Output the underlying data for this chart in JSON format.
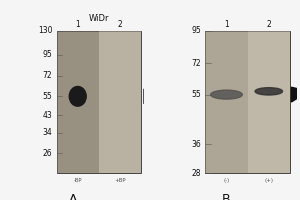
{
  "background_color": "#f5f5f5",
  "panel_A": {
    "header": "WiDr",
    "lane_labels": [
      "1",
      "2"
    ],
    "mw_markers": [
      130,
      95,
      72,
      55,
      43,
      34,
      26
    ],
    "mw_log_min": 1.301,
    "mw_log_max": 2.114,
    "gel_bg_color": "#c8c0b0",
    "lane1_color": "#787060",
    "lane2_color": "#b0a898",
    "band_lane": 0,
    "band_mw": 55,
    "band_color": "#1a1a1a",
    "bottom_labels": [
      "-BP",
      "+BP"
    ],
    "panel_label": "A"
  },
  "panel_B": {
    "lane_labels": [
      "1",
      "2"
    ],
    "mw_markers": [
      95,
      72,
      55,
      36,
      28
    ],
    "mw_log_min": 1.447,
    "mw_log_max": 1.978,
    "gel_bg_color": "#c8c0b0",
    "lane1_color": "#989080",
    "lane2_color": "#b8b0a0",
    "band1_mw": 55,
    "band2_mw": 55,
    "band_color": "#303030",
    "bottom_labels": [
      "(-)",
      "(+)"
    ],
    "panel_label": "B"
  },
  "mw_fontsize": 5.5,
  "label_fontsize": 5.5,
  "header_fontsize": 6.0,
  "panel_letter_fontsize": 9
}
